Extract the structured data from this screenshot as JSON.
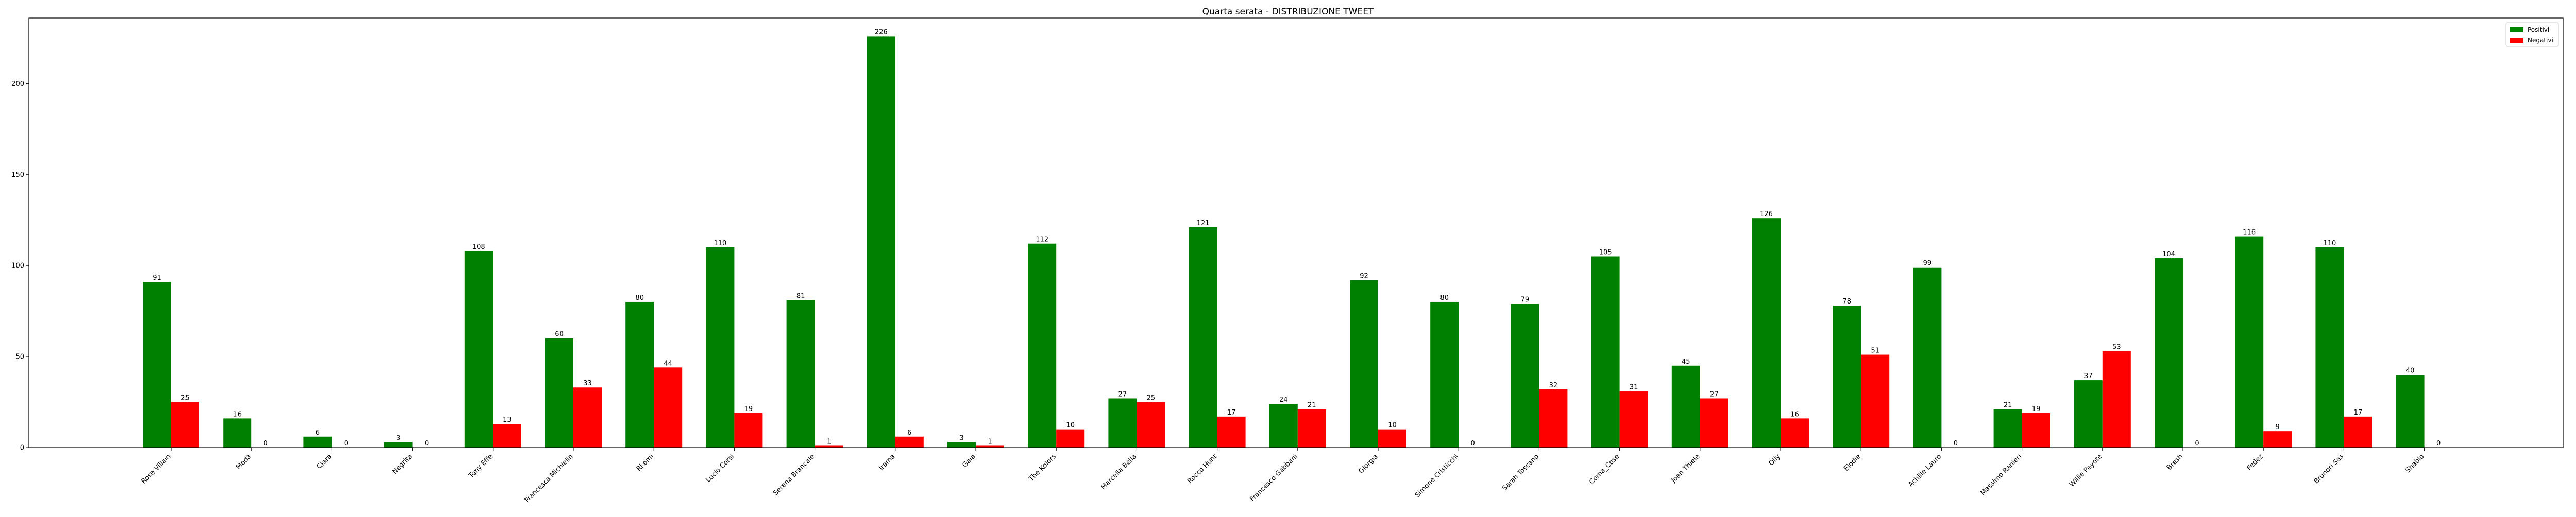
{
  "chart_data": {
    "type": "bar",
    "title": "Quarta serata - DISTRIBUZIONE TWEET",
    "xlabel": "",
    "ylabel": "",
    "ylim": [
      0,
      236
    ],
    "yticks": [
      0,
      50,
      100,
      150,
      200
    ],
    "grid": false,
    "legend_position": "top-right",
    "categories": [
      "Rose Villain",
      "Modà",
      "Clara",
      "Negrita",
      "Tony Effe",
      "Francesca Michielin",
      "Rkomi",
      "Lucio Corsi",
      "Serena Brancale",
      "Irama",
      "Gaia",
      "The Kolors",
      "Marcella Bella",
      "Rocco Hunt",
      "Francesco Gabbani",
      "Giorgia",
      "Simone Cristicchi",
      "Sarah Toscano",
      "Coma_Cose",
      "Joan Thiele",
      "Olly",
      "Elodie",
      "Achille Lauro",
      "Massimo Ranieri",
      "Willie Peyote",
      "Bresh",
      "Fedez",
      "Brunori Sas",
      "Shablo"
    ],
    "series": [
      {
        "name": "Positivi",
        "color": "#008000",
        "values": [
          91,
          16,
          6,
          3,
          108,
          60,
          80,
          110,
          81,
          226,
          3,
          112,
          27,
          121,
          24,
          92,
          80,
          79,
          105,
          45,
          126,
          78,
          99,
          21,
          37,
          104,
          116,
          110,
          40
        ]
      },
      {
        "name": "Negativi",
        "color": "#ff0000",
        "values": [
          25,
          0,
          0,
          0,
          13,
          33,
          44,
          19,
          1,
          6,
          1,
          10,
          25,
          17,
          21,
          10,
          0,
          32,
          31,
          27,
          16,
          51,
          0,
          19,
          53,
          0,
          9,
          17,
          0
        ]
      }
    ]
  }
}
